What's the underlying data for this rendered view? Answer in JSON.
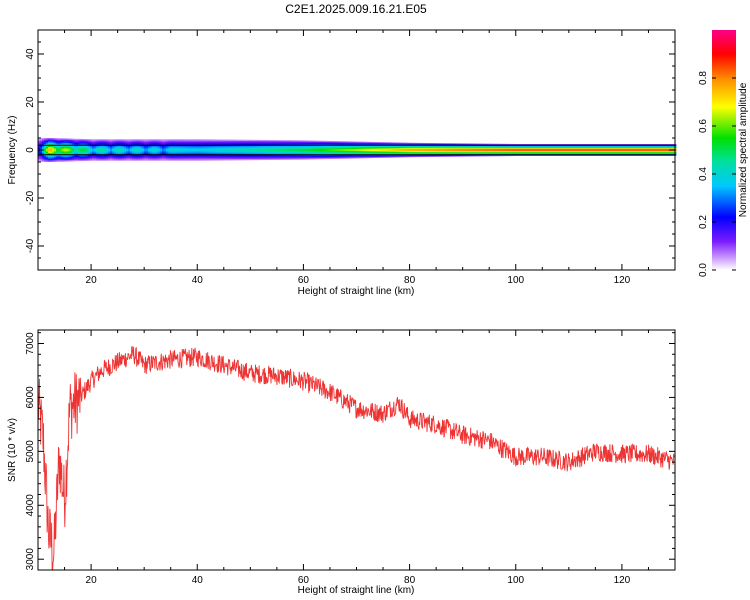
{
  "title": "C2E1.2025.009.16.21.E05",
  "colors": {
    "snr_line": "#ee3333",
    "frame": "#000000"
  },
  "chart_data": [
    {
      "type": "heatmap",
      "xlabel": "Height of straight line (km)",
      "ylabel": "Frequency (Hz)",
      "xlim": [
        10,
        130
      ],
      "ylim": [
        -50,
        50
      ],
      "xticks": [
        20,
        40,
        60,
        80,
        100,
        120
      ],
      "yticks": [
        -40,
        -20,
        0,
        20,
        40
      ],
      "colorbar": {
        "label": "Normalized spectral amplitude",
        "range": [
          0,
          1
        ],
        "ticks": [
          0.0,
          0.2,
          0.4,
          0.6,
          0.8
        ],
        "colormap": "rainbow (white-violet-blue-cyan-green-yellow-red-magenta)"
      },
      "band_peak_frequency_hz": 0,
      "band_edge_lines_hz": [
        2,
        -2
      ],
      "band_profile": [
        {
          "x": 10,
          "halfwidth_hz": 5,
          "center_amp": 0.3
        },
        {
          "x": 12,
          "halfwidth_hz": 5,
          "center_amp": 0.85
        },
        {
          "x": 20,
          "halfwidth_hz": 4.5,
          "center_amp": 0.5
        },
        {
          "x": 40,
          "halfwidth_hz": 4.5,
          "center_amp": 0.4
        },
        {
          "x": 60,
          "halfwidth_hz": 4,
          "center_amp": 0.55
        },
        {
          "x": 80,
          "halfwidth_hz": 3,
          "center_amp": 0.85
        },
        {
          "x": 100,
          "halfwidth_hz": 2.5,
          "center_amp": 0.95
        },
        {
          "x": 130,
          "halfwidth_hz": 2.5,
          "center_amp": 0.95
        }
      ]
    },
    {
      "type": "line",
      "xlabel": "Height of straight line (km)",
      "ylabel": "SNR (10 * v/v)",
      "xlim": [
        10,
        130
      ],
      "ylim": [
        2800,
        7250
      ],
      "xticks": [
        20,
        40,
        60,
        80,
        100,
        120
      ],
      "yticks": [
        3000,
        4000,
        5000,
        6000,
        7000
      ],
      "series": [
        {
          "x": [
            10,
            11,
            12,
            13,
            14,
            15,
            16,
            18,
            20,
            22,
            24,
            26,
            28,
            30,
            35,
            40,
            45,
            50,
            55,
            60,
            65,
            70,
            75,
            78,
            80,
            85,
            90,
            95,
            100,
            105,
            110,
            115,
            120,
            125,
            130
          ],
          "values": [
            5900,
            5200,
            3500,
            3100,
            4900,
            4100,
            5800,
            6000,
            6300,
            6500,
            6600,
            6700,
            6800,
            6600,
            6700,
            6750,
            6600,
            6450,
            6400,
            6300,
            6100,
            5800,
            5700,
            5900,
            5600,
            5500,
            5300,
            5200,
            4900,
            4900,
            4800,
            5000,
            4950,
            4950,
            4800
          ],
          "noise_amplitude": 180
        }
      ]
    }
  ]
}
